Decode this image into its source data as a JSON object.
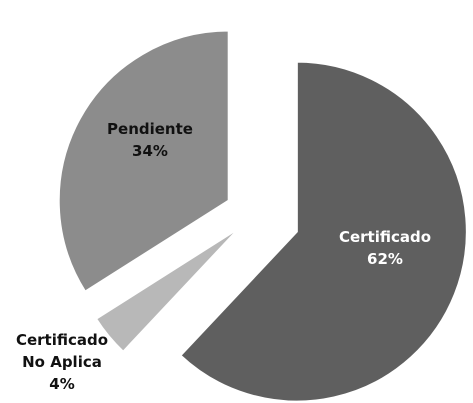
{
  "chart_data": {
    "type": "pie",
    "categories": [
      "Certificado",
      "Certificado No Aplica",
      "Pendiente"
    ],
    "values": [
      62,
      4,
      34
    ],
    "value_labels": [
      "62%",
      "4%",
      "34%"
    ],
    "colors": [
      "#5f5f5f",
      "#b8b8b8",
      "#8c8c8c"
    ]
  }
}
